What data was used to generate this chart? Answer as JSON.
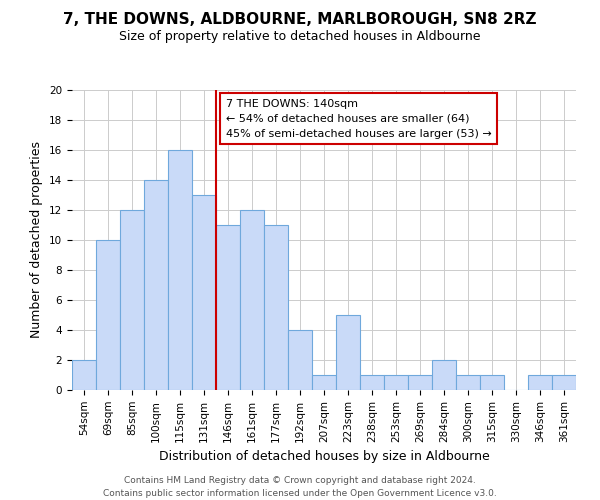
{
  "title": "7, THE DOWNS, ALDBOURNE, MARLBOROUGH, SN8 2RZ",
  "subtitle": "Size of property relative to detached houses in Aldbourne",
  "xlabel": "Distribution of detached houses by size in Aldbourne",
  "ylabel": "Number of detached properties",
  "bin_labels": [
    "54sqm",
    "69sqm",
    "85sqm",
    "100sqm",
    "115sqm",
    "131sqm",
    "146sqm",
    "161sqm",
    "177sqm",
    "192sqm",
    "207sqm",
    "223sqm",
    "238sqm",
    "253sqm",
    "269sqm",
    "284sqm",
    "300sqm",
    "315sqm",
    "330sqm",
    "346sqm",
    "361sqm"
  ],
  "bar_heights": [
    2,
    10,
    12,
    14,
    16,
    13,
    11,
    12,
    11,
    4,
    1,
    5,
    1,
    1,
    1,
    2,
    1,
    1,
    0,
    1,
    1
  ],
  "bar_color": "#c9daf8",
  "bar_edge_color": "#6fa8dc",
  "vline_x": 5.5,
  "vline_color": "#cc0000",
  "annotation_title": "7 THE DOWNS: 140sqm",
  "annotation_line1": "← 54% of detached houses are smaller (64)",
  "annotation_line2": "45% of semi-detached houses are larger (53) →",
  "annotation_box_color": "#cc0000",
  "ylim": [
    0,
    20
  ],
  "yticks": [
    0,
    2,
    4,
    6,
    8,
    10,
    12,
    14,
    16,
    18,
    20
  ],
  "footer1": "Contains HM Land Registry data © Crown copyright and database right 2024.",
  "footer2": "Contains public sector information licensed under the Open Government Licence v3.0.",
  "grid_color": "#cccccc",
  "bg_color": "#ffffff",
  "title_fontsize": 11,
  "subtitle_fontsize": 9,
  "ylabel_fontsize": 9,
  "xlabel_fontsize": 9,
  "tick_fontsize": 7.5,
  "annotation_fontsize": 8,
  "footer_fontsize": 6.5
}
